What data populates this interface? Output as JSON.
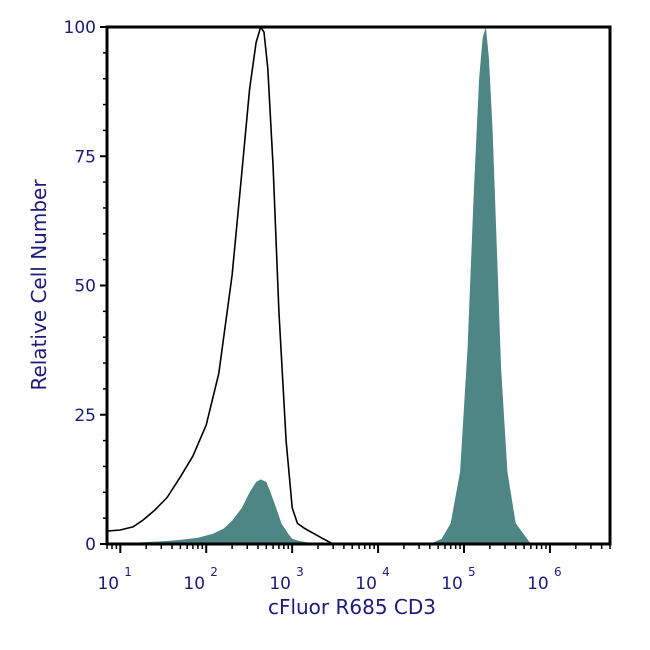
{
  "chart_data": {
    "type": "area",
    "xlabel": "cFluor R685 CD3",
    "ylabel": "Relative Cell Number",
    "x_scale": "log",
    "xlim": [
      7,
      5000000
    ],
    "ylim": [
      0,
      100
    ],
    "y_ticks": [
      {
        "value": 0,
        "label": "0"
      },
      {
        "value": 25,
        "label": "25"
      },
      {
        "value": 50,
        "label": "50"
      },
      {
        "value": 75,
        "label": "75"
      },
      {
        "value": 100,
        "label": "100"
      }
    ],
    "x_ticks": [
      {
        "value": 10,
        "base": "10",
        "exp": "1"
      },
      {
        "value": 100,
        "base": "10",
        "exp": "2"
      },
      {
        "value": 1000,
        "base": "10",
        "exp": "3"
      },
      {
        "value": 10000,
        "base": "10",
        "exp": "4"
      },
      {
        "value": 100000,
        "base": "10",
        "exp": "5"
      },
      {
        "value": 1000000,
        "base": "10",
        "exp": "6"
      }
    ],
    "grid": false,
    "series": [
      {
        "style": "outline",
        "color": "#000000",
        "x": [
          7,
          10,
          14,
          18,
          25,
          35,
          50,
          70,
          100,
          140,
          200,
          260,
          320,
          380,
          430,
          470,
          520,
          600,
          700,
          850,
          1000,
          1150,
          1400,
          1800,
          2300,
          3000,
          5000,
          5000000
        ],
        "y": [
          2.5,
          2.7,
          3.3,
          4.5,
          6.5,
          9,
          13,
          17,
          23,
          33,
          52,
          72,
          88,
          97,
          100,
          99,
          92,
          73,
          45,
          20,
          7,
          4,
          3,
          2,
          1,
          0,
          0,
          0
        ]
      },
      {
        "style": "filled",
        "color": "#4e8585",
        "x": [
          7,
          30,
          50,
          80,
          120,
          160,
          200,
          260,
          320,
          380,
          430,
          500,
          560,
          650,
          750,
          900,
          1000,
          1200,
          1500,
          2000,
          3000,
          10000,
          25000,
          40000,
          55000,
          70000,
          90000,
          110000,
          130000,
          150000,
          165000,
          180000,
          195000,
          215000,
          240000,
          270000,
          320000,
          400000,
          600000,
          5000000
        ],
        "y": [
          0,
          0.5,
          0.8,
          1.2,
          2,
          3,
          4.5,
          7,
          10,
          12,
          12.5,
          12,
          10,
          7,
          4,
          2,
          1,
          0.6,
          0.3,
          0.2,
          0,
          0,
          0,
          0,
          1,
          4,
          14,
          38,
          68,
          90,
          98,
          100,
          94,
          80,
          58,
          34,
          14,
          4,
          0,
          0
        ]
      }
    ]
  }
}
